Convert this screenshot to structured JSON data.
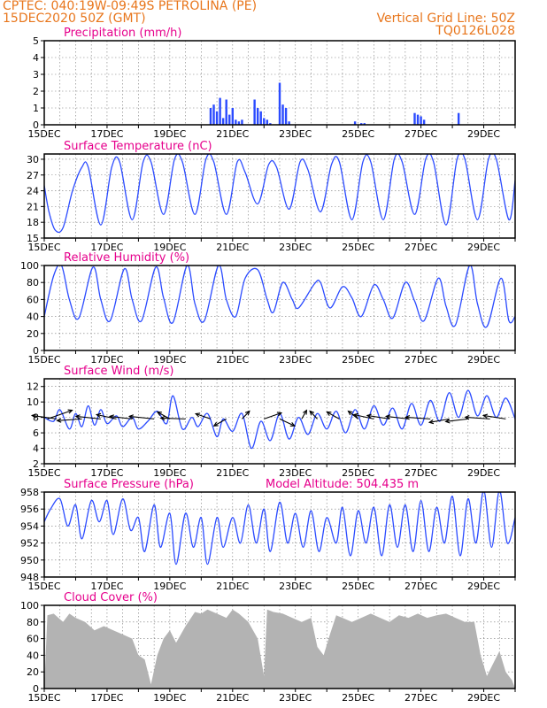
{
  "header": {
    "line1": "CPTEC:   040:19W-09:49S   PETROLINA (PE)",
    "line2": "15DEC2020 50Z (GMT)",
    "right1": "Vertical Grid Line: 50Z",
    "right2": "TQ0126L028"
  },
  "colors": {
    "header": "#e8761c",
    "title": "#e6008c",
    "line": "#2b4bff",
    "cloud": "#b3b3b3"
  },
  "chart_data": [
    {
      "type": "bar",
      "title": "Precipitation (mm/h)",
      "xticks": [
        "15DEC",
        "17DEC",
        "19DEC",
        "21DEC",
        "23DEC",
        "25DEC",
        "27DEC",
        "29DEC"
      ],
      "yticks": [
        0,
        1,
        2,
        3,
        4,
        5
      ],
      "ylim": [
        0,
        5
      ],
      "xlim": [
        0,
        15
      ],
      "series": [
        {
          "x": [
            5.3,
            5.4,
            5.5,
            5.6,
            5.7,
            5.8,
            5.9,
            6.0,
            6.1,
            6.2,
            6.3,
            6.7,
            6.8,
            6.9,
            7.0,
            7.1,
            7.2,
            7.5,
            7.6,
            7.7,
            7.8,
            9.9,
            10.1,
            10.2,
            11.8,
            11.9,
            12.0,
            12.1,
            13.2
          ],
          "values": [
            1.0,
            1.2,
            0.8,
            1.6,
            0.4,
            1.5,
            0.6,
            1.0,
            0.3,
            0.2,
            0.3,
            1.5,
            1.0,
            0.8,
            0.4,
            0.3,
            0.1,
            2.5,
            1.2,
            1.0,
            0.2,
            0.2,
            0.1,
            0.1,
            0.7,
            0.6,
            0.5,
            0.3,
            0.7
          ]
        }
      ]
    },
    {
      "type": "line",
      "title": "Surface Temperature (nC)",
      "xticks": [
        "15DEC",
        "17DEC",
        "19DEC",
        "21DEC",
        "23DEC",
        "25DEC",
        "27DEC",
        "29DEC"
      ],
      "yticks": [
        15,
        18,
        21,
        24,
        27,
        30
      ],
      "ylim": [
        15,
        31
      ],
      "xlim": [
        0,
        15
      ],
      "series": [
        {
          "x": [
            0.0,
            0.15,
            0.35,
            0.6,
            0.9,
            1.2,
            1.4,
            1.8,
            2.15,
            2.4,
            2.8,
            3.15,
            3.4,
            3.8,
            4.15,
            4.4,
            4.8,
            5.15,
            5.4,
            5.8,
            6.15,
            6.4,
            6.8,
            7.15,
            7.4,
            7.8,
            8.15,
            8.4,
            8.8,
            9.15,
            9.4,
            9.8,
            10.15,
            10.4,
            10.8,
            11.15,
            11.4,
            11.8,
            12.15,
            12.4,
            12.8,
            13.15,
            13.4,
            13.8,
            14.15,
            14.4,
            14.8,
            15.0
          ],
          "values": [
            25,
            20,
            16.5,
            17,
            24,
            28.5,
            28.5,
            17.5,
            28.5,
            29.5,
            18.5,
            29.5,
            29.5,
            19.5,
            30,
            29.5,
            19.5,
            30,
            29.5,
            19.5,
            29.5,
            27.5,
            21.5,
            29,
            28.5,
            20.5,
            29.5,
            28,
            20,
            29,
            29.5,
            18.5,
            29.5,
            29.5,
            18.5,
            30,
            29.5,
            19.5,
            30,
            29.5,
            17.5,
            30,
            30,
            18.5,
            30,
            30,
            18.5,
            26
          ]
        }
      ]
    },
    {
      "type": "line",
      "title": "Relative Humidity (%)",
      "xticks": [
        "15DEC",
        "17DEC",
        "19DEC",
        "21DEC",
        "23DEC",
        "25DEC",
        "27DEC",
        "29DEC"
      ],
      "yticks": [
        0,
        20,
        40,
        60,
        80,
        100
      ],
      "ylim": [
        0,
        100
      ],
      "xlim": [
        0,
        15
      ],
      "series": [
        {
          "x": [
            0.0,
            0.3,
            0.55,
            0.8,
            1.1,
            1.55,
            1.8,
            2.1,
            2.55,
            2.8,
            3.1,
            3.55,
            3.8,
            4.1,
            4.55,
            4.8,
            5.1,
            5.55,
            5.8,
            6.1,
            6.4,
            6.8,
            7.1,
            7.3,
            7.6,
            7.9,
            8.1,
            8.6,
            8.8,
            9.1,
            9.5,
            9.8,
            10.1,
            10.5,
            10.8,
            11.1,
            11.5,
            11.8,
            12.1,
            12.55,
            12.8,
            13.1,
            13.55,
            13.8,
            14.1,
            14.55,
            14.8,
            15.0
          ],
          "values": [
            40,
            88,
            100,
            60,
            38,
            98,
            60,
            35,
            96,
            60,
            35,
            98,
            62,
            33,
            100,
            55,
            35,
            100,
            60,
            40,
            85,
            95,
            60,
            45,
            80,
            60,
            50,
            78,
            80,
            50,
            75,
            62,
            40,
            77,
            60,
            38,
            80,
            58,
            35,
            85,
            52,
            30,
            100,
            55,
            28,
            85,
            35,
            40
          ]
        }
      ]
    },
    {
      "type": "line",
      "title": "Surface Wind (m/s)",
      "xticks": [
        "15DEC",
        "17DEC",
        "19DEC",
        "21DEC",
        "23DEC",
        "25DEC",
        "27DEC",
        "29DEC"
      ],
      "yticks": [
        2,
        4,
        6,
        8,
        10,
        12
      ],
      "ylim": [
        2,
        13
      ],
      "xlim": [
        0,
        15
      ],
      "series": [
        {
          "x": [
            0.0,
            0.3,
            0.5,
            0.8,
            1.0,
            1.2,
            1.4,
            1.6,
            1.8,
            2.0,
            2.3,
            2.5,
            2.8,
            3.0,
            3.3,
            3.6,
            3.9,
            4.1,
            4.4,
            4.7,
            4.9,
            5.2,
            5.5,
            5.7,
            6.0,
            6.3,
            6.6,
            6.9,
            7.2,
            7.5,
            7.8,
            8.1,
            8.4,
            8.7,
            9.0,
            9.3,
            9.6,
            9.9,
            10.2,
            10.5,
            10.8,
            11.1,
            11.4,
            11.7,
            12.0,
            12.3,
            12.6,
            12.9,
            13.2,
            13.5,
            13.8,
            14.1,
            14.4,
            14.7,
            15.0
          ],
          "values": [
            8,
            7.5,
            9,
            6.5,
            8.5,
            6.8,
            9.5,
            7,
            9,
            7.2,
            8.2,
            6.8,
            8,
            6.5,
            7.5,
            8.8,
            7.2,
            10.8,
            6.5,
            8,
            6.8,
            8.5,
            5.5,
            7.8,
            6.2,
            8.5,
            4,
            7.5,
            5,
            8.5,
            5.2,
            8,
            5.8,
            8.5,
            6.5,
            8.8,
            6,
            9,
            6.5,
            9.5,
            7,
            9.2,
            6.5,
            9.8,
            7,
            10.2,
            7.5,
            11.2,
            8,
            11.5,
            8.2,
            10.8,
            8,
            10.5,
            7.8
          ]
        }
      ],
      "arrows": [
        {
          "x": 0.1,
          "u": 1,
          "v": 1
        },
        {
          "x": 0.4,
          "u": -1,
          "v": 0.4
        },
        {
          "x": 1.2,
          "u": -1,
          "v": -0.2
        },
        {
          "x": 1.8,
          "u": -1,
          "v": 0.3
        },
        {
          "x": 2.3,
          "u": -0.8,
          "v": 0.5
        },
        {
          "x": 2.8,
          "u": -0.9,
          "v": 0.3
        },
        {
          "x": 3.5,
          "u": -1,
          "v": 0.3
        },
        {
          "x": 4.0,
          "u": -0.5,
          "v": 0.8
        },
        {
          "x": 4.5,
          "u": -1,
          "v": 0.1
        },
        {
          "x": 5.3,
          "u": -0.6,
          "v": 0.6
        },
        {
          "x": 5.8,
          "u": -0.5,
          "v": -0.8
        },
        {
          "x": 6.3,
          "u": 0.3,
          "v": 0.9
        },
        {
          "x": 7.0,
          "u": 0.7,
          "v": 0.7
        },
        {
          "x": 7.5,
          "u": 0.6,
          "v": -0.8
        },
        {
          "x": 8.2,
          "u": 0.2,
          "v": 1
        },
        {
          "x": 8.7,
          "u": -0.3,
          "v": 0.9
        },
        {
          "x": 9.4,
          "u": -0.5,
          "v": 0.8
        },
        {
          "x": 10.0,
          "u": -0.4,
          "v": 0.9
        },
        {
          "x": 10.5,
          "u": -0.8,
          "v": 0.5
        },
        {
          "x": 11.0,
          "u": -0.9,
          "v": 0.4
        },
        {
          "x": 11.6,
          "u": -0.9,
          "v": 0.3
        },
        {
          "x": 12.3,
          "u": -1,
          "v": 0.2
        },
        {
          "x": 12.9,
          "u": -0.8,
          "v": -0.4
        },
        {
          "x": 13.5,
          "u": -0.9,
          "v": -0.3
        },
        {
          "x": 14.2,
          "u": -1,
          "v": 0.2
        },
        {
          "x": 14.7,
          "u": -0.9,
          "v": 0.4
        }
      ]
    },
    {
      "type": "line",
      "title": "Surface Pressure (hPa)",
      "annotation": "Model Altitude: 504.435  m",
      "xticks": [
        "15DEC",
        "17DEC",
        "19DEC",
        "21DEC",
        "23DEC",
        "25DEC",
        "27DEC",
        "29DEC"
      ],
      "yticks": [
        948,
        950,
        952,
        954,
        956,
        958
      ],
      "ylim": [
        948,
        958
      ],
      "xlim": [
        0,
        15
      ],
      "series": [
        {
          "x": [
            0.0,
            0.2,
            0.5,
            0.75,
            1.0,
            1.2,
            1.5,
            1.75,
            2.0,
            2.2,
            2.5,
            2.75,
            3.0,
            3.2,
            3.5,
            3.7,
            4.0,
            4.2,
            4.5,
            4.75,
            5.0,
            5.2,
            5.5,
            5.7,
            6.0,
            6.25,
            6.5,
            6.75,
            7.0,
            7.2,
            7.5,
            7.75,
            8.0,
            8.25,
            8.5,
            8.75,
            9.0,
            9.3,
            9.5,
            9.75,
            10.0,
            10.25,
            10.5,
            10.75,
            11.0,
            11.25,
            11.5,
            11.75,
            12.0,
            12.25,
            12.5,
            12.75,
            13.0,
            13.25,
            13.5,
            13.75,
            14.0,
            14.25,
            14.5,
            14.75,
            15.0
          ],
          "values": [
            954.5,
            956,
            957.2,
            954,
            956.5,
            952.5,
            957,
            954.5,
            957,
            953,
            957.2,
            953.5,
            955,
            951,
            956.5,
            951.5,
            955.5,
            949.5,
            955.5,
            951.5,
            955,
            949.5,
            955,
            951.5,
            955,
            952,
            956.5,
            952,
            956,
            951,
            956.8,
            952,
            955.5,
            951.5,
            955.8,
            951,
            955,
            952,
            956.2,
            950.5,
            955.8,
            952,
            956.2,
            950.5,
            956.5,
            951.5,
            956.5,
            951,
            957,
            951,
            956.2,
            952,
            957.5,
            950.5,
            957.2,
            952,
            958.2,
            951.5,
            958.2,
            952,
            955
          ]
        }
      ]
    },
    {
      "type": "area",
      "title": "Cloud Cover (%)",
      "xticks": [
        "15DEC",
        "17DEC",
        "19DEC",
        "21DEC",
        "23DEC",
        "25DEC",
        "27DEC",
        "29DEC"
      ],
      "yticks": [
        0,
        20,
        40,
        60,
        80,
        100
      ],
      "ylim": [
        0,
        100
      ],
      "xlim": [
        0,
        15
      ],
      "series": [
        {
          "x": [
            0.0,
            0.1,
            0.3,
            0.6,
            0.8,
            1.0,
            1.3,
            1.6,
            1.9,
            2.2,
            2.5,
            2.8,
            3.0,
            3.2,
            3.4,
            3.6,
            3.8,
            4.0,
            4.2,
            4.5,
            4.8,
            5.0,
            5.2,
            5.5,
            5.8,
            6.0,
            6.2,
            6.5,
            6.8,
            7.0,
            7.1,
            7.3,
            7.6,
            7.9,
            8.2,
            8.5,
            8.7,
            8.9,
            9.1,
            9.3,
            9.5,
            9.8,
            10.1,
            10.4,
            10.7,
            11.0,
            11.3,
            11.6,
            11.9,
            12.2,
            12.5,
            12.8,
            13.1,
            13.4,
            13.7,
            13.9,
            14.1,
            14.3,
            14.5,
            14.7,
            14.9,
            15.0
          ],
          "values": [
            0,
            88,
            90,
            80,
            90,
            85,
            80,
            70,
            75,
            70,
            65,
            60,
            40,
            35,
            5,
            40,
            60,
            70,
            55,
            75,
            92,
            90,
            95,
            90,
            85,
            95,
            90,
            80,
            60,
            15,
            95,
            92,
            90,
            85,
            80,
            85,
            50,
            40,
            65,
            88,
            85,
            80,
            85,
            90,
            85,
            80,
            88,
            85,
            90,
            85,
            88,
            90,
            85,
            80,
            80,
            40,
            15,
            30,
            45,
            20,
            10,
            0
          ]
        }
      ]
    }
  ]
}
